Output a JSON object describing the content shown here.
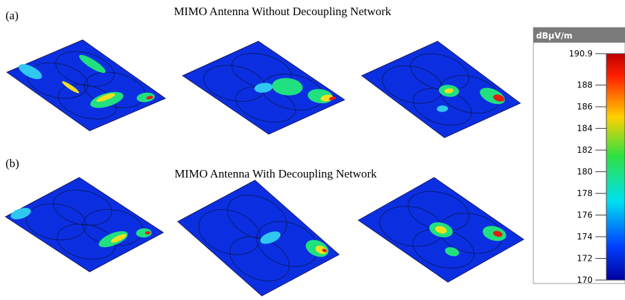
{
  "panels": [
    {
      "label": "(a)",
      "title": "MIMO Antenna Without Decoupling Network"
    },
    {
      "label": "(b)",
      "title": "MIMO Antenna With Decoupling Network"
    }
  ],
  "colorbar": {
    "unit": "dBµV/m",
    "range": [
      170,
      190.9
    ],
    "ticks": [
      190.9,
      188,
      186,
      184,
      182,
      180,
      178,
      176,
      174,
      172,
      170
    ]
  }
}
